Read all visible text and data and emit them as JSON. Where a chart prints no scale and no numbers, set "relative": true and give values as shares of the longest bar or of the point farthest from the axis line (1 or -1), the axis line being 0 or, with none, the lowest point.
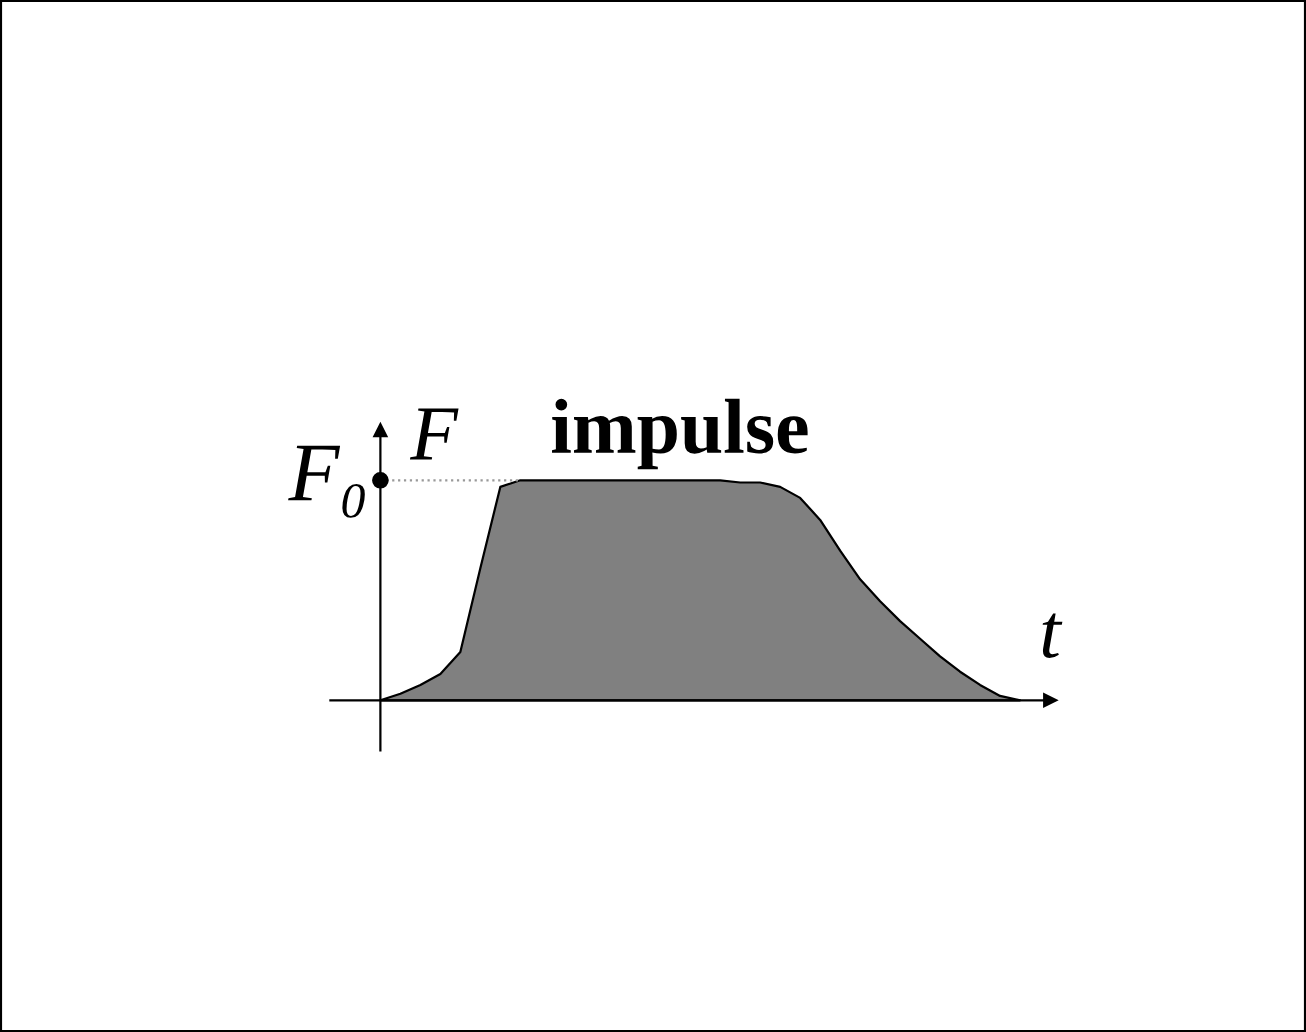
{
  "chart_data": {
    "type": "area",
    "relative": true,
    "xlabel": "t",
    "ylabel": "F",
    "annotations": [
      "impulse"
    ],
    "categories": [
      null,
      null,
      null,
      null,
      null,
      null,
      null,
      null,
      null,
      null,
      null,
      null,
      null,
      null,
      null,
      null,
      null,
      null,
      null,
      null,
      null,
      null,
      null,
      null,
      null,
      null,
      null,
      null,
      null,
      null,
      null,
      null,
      null
    ],
    "series": [
      {
        "color": "#808080",
        "values": [
          0,
          0.03,
          0.07,
          0.12,
          0.22,
          0.6,
          0.97,
          1.0,
          1.0,
          1.0,
          1.0,
          1.0,
          1.0,
          1.0,
          1.0,
          1.0,
          1.0,
          1.0,
          0.99,
          0.99,
          0.97,
          0.92,
          0.82,
          0.68,
          0.55,
          0.45,
          0.36,
          0.28,
          0.2,
          0.13,
          0.07,
          0.02,
          0
        ]
      }
    ],
    "ref_lines": [
      {
        "axis": "y",
        "value": 1,
        "label": "F₀",
        "line_style": "dotted"
      }
    ],
    "legend": false
  }
}
